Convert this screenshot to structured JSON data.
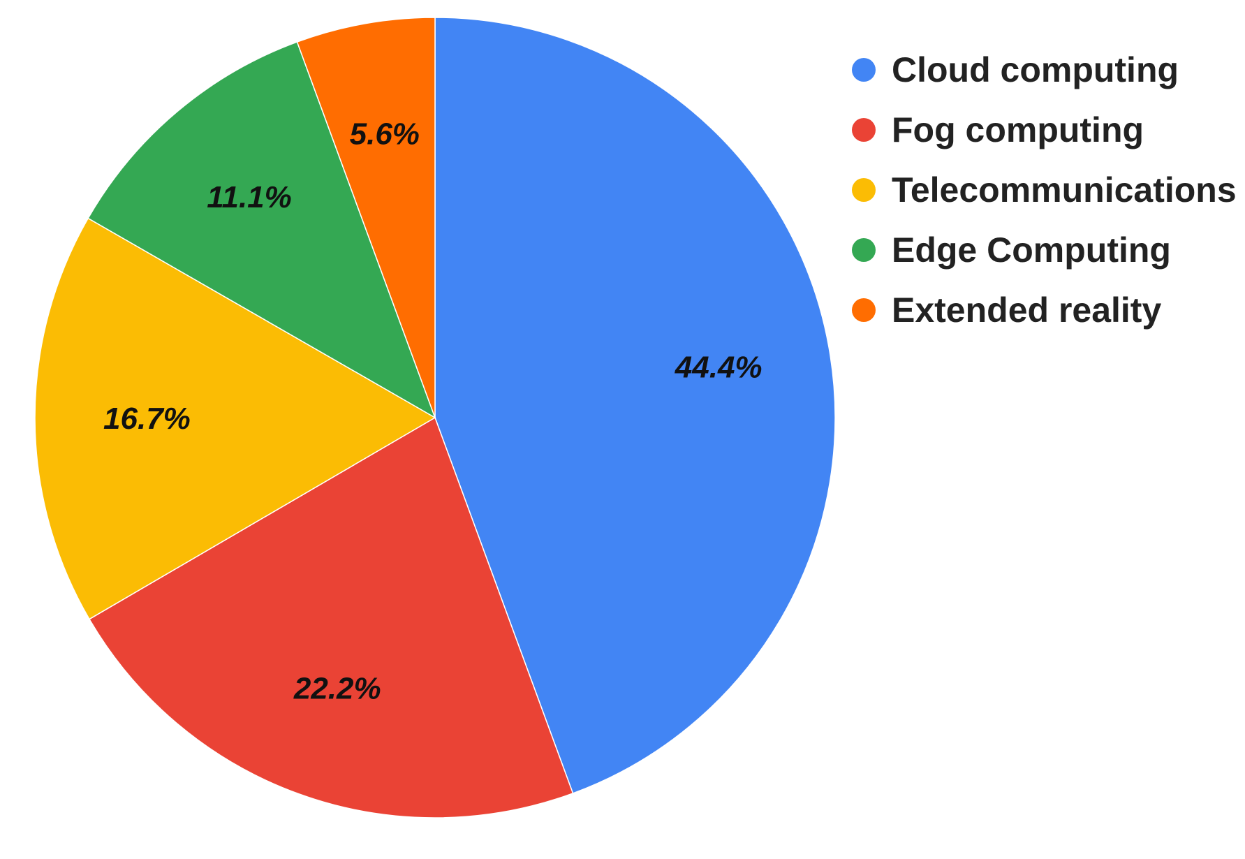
{
  "chart_data": {
    "type": "pie",
    "title": "",
    "start_angle_deg": 0,
    "direction": "clockwise",
    "legend_position": "right",
    "slices": [
      {
        "name": "Cloud computing",
        "value": 44.4,
        "label": "44.4%",
        "color": "#4285F4"
      },
      {
        "name": "Fog computing",
        "value": 22.2,
        "label": "22.2%",
        "color": "#EA4335"
      },
      {
        "name": "Telecommunications",
        "value": 16.7,
        "label": "16.7%",
        "color": "#FBBC04"
      },
      {
        "name": "Edge Computing",
        "value": 11.1,
        "label": "11.1%",
        "color": "#34A853"
      },
      {
        "name": "Extended reality",
        "value": 5.6,
        "label": "5.6%",
        "color": "#FF6D01"
      }
    ]
  }
}
